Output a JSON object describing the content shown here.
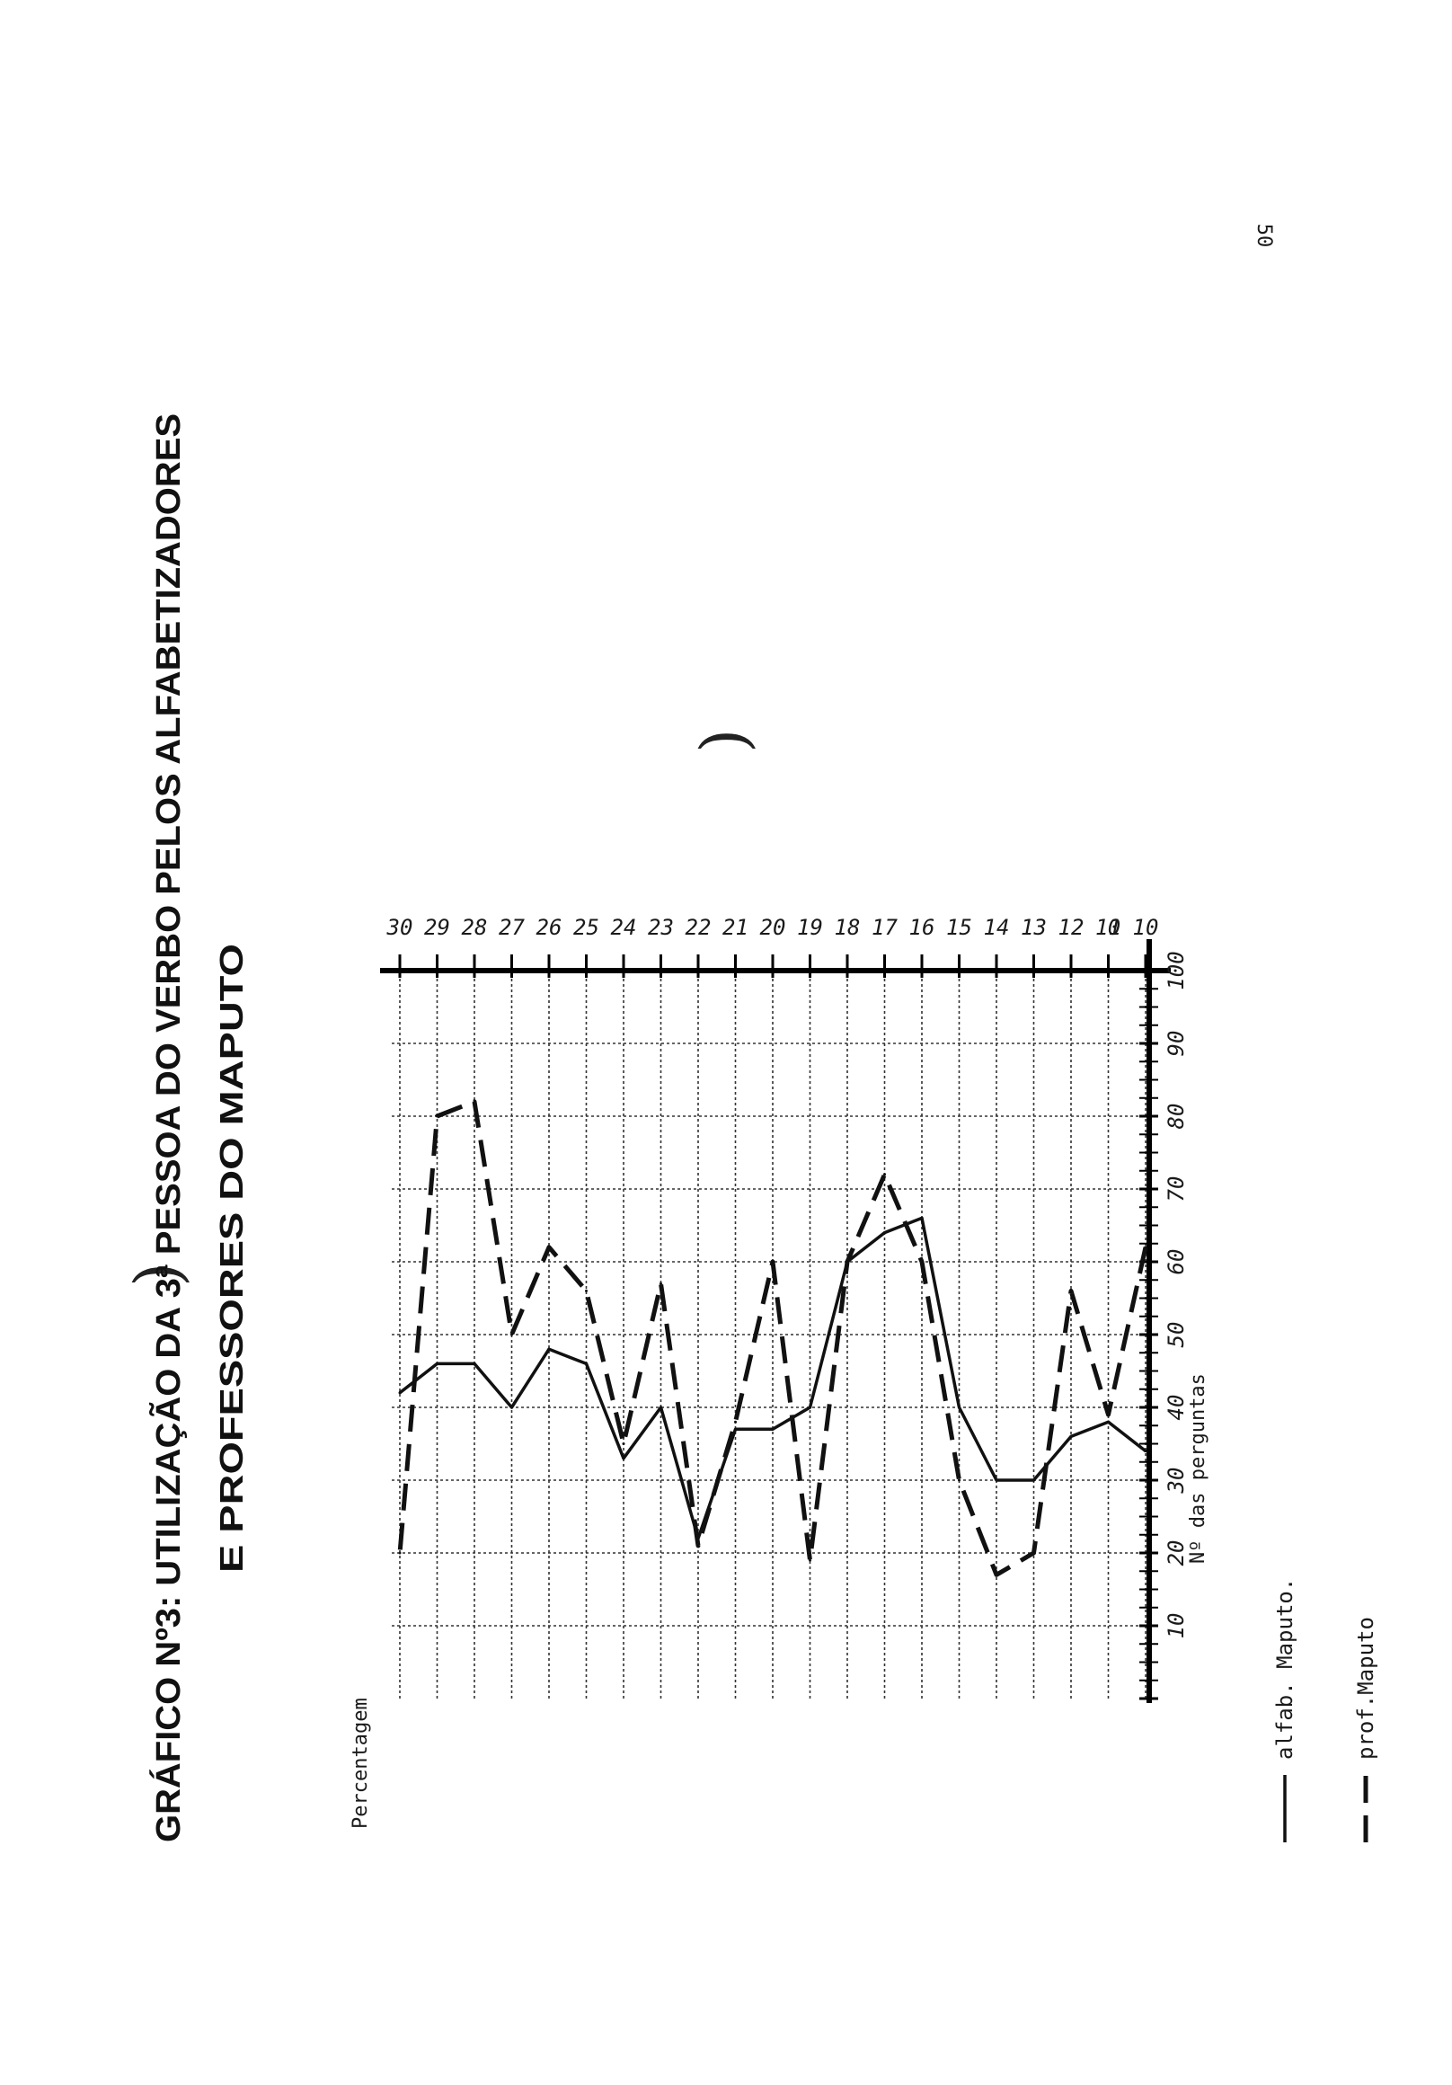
{
  "page": {
    "page_number": "50"
  },
  "chart_data": {
    "type": "line",
    "title": "GRÁFICO Nº3: UTILIZAÇÃO DA 3ª PESSOA DO VERBO PELOS ALFABETIZADORES",
    "subtitle": "E PROFESSORES DO MAPUTO",
    "ylabel": "Percentagem",
    "xlabel": "Nº das perguntas",
    "ylim": [
      0,
      100
    ],
    "y_ticks": [
      "10",
      "20",
      "30",
      "40",
      "50",
      "60",
      "70",
      "80",
      "90",
      "100"
    ],
    "x_ticks": [
      "0",
      "10",
      "11",
      "12",
      "13",
      "14",
      "15",
      "16",
      "17",
      "18",
      "19",
      "20",
      "21",
      "22",
      "23",
      "24",
      "25",
      "26",
      "27",
      "28",
      "29",
      "30"
    ],
    "x": [
      10,
      11,
      12,
      13,
      14,
      15,
      16,
      17,
      18,
      19,
      20,
      21,
      22,
      23,
      24,
      25,
      26,
      27,
      28,
      29,
      30
    ],
    "grid": true,
    "legend_placement": "bottom",
    "series": [
      {
        "name": "alfab. Maputo.",
        "style": "solid",
        "values": [
          34,
          38,
          36,
          30,
          30,
          40,
          66,
          64,
          60,
          40,
          37,
          37,
          22,
          40,
          33,
          46,
          48,
          40,
          46,
          46,
          42
        ]
      },
      {
        "name": "prof.Maputo",
        "style": "dashed",
        "values": [
          62,
          39,
          56,
          20,
          17,
          30,
          60,
          72,
          60,
          19,
          60,
          38,
          21,
          57,
          35,
          56,
          62,
          50,
          82,
          80,
          20
        ]
      }
    ]
  }
}
